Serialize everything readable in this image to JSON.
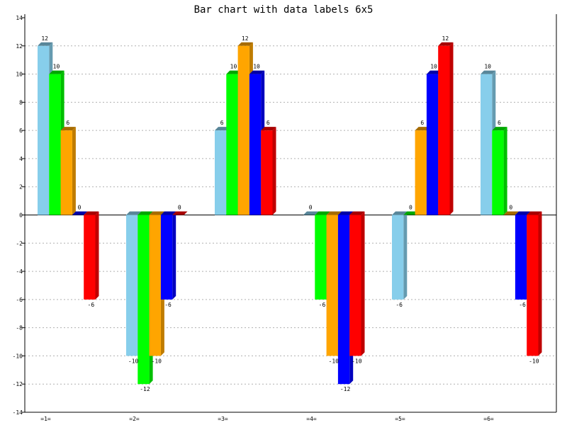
{
  "chart_data": {
    "type": "bar",
    "title": "Bar chart with data labels 6x5",
    "categories": [
      "=1=",
      "=2=",
      "=3=",
      "=4=",
      "=5=",
      "=6="
    ],
    "series": [
      {
        "values": [
          12,
          -10,
          6,
          0,
          -6,
          10
        ],
        "color": "#87ceeb"
      },
      {
        "values": [
          10,
          -12,
          10,
          -6,
          0,
          6
        ],
        "color": "#00ff00"
      },
      {
        "values": [
          6,
          -10,
          12,
          -10,
          6,
          0
        ],
        "color": "#ffa500"
      },
      {
        "values": [
          0,
          -6,
          10,
          -12,
          10,
          -6
        ],
        "color": "#0000ff"
      },
      {
        "values": [
          -6,
          0,
          6,
          -10,
          12,
          -10
        ],
        "color": "#ff0000"
      }
    ],
    "ylim": [
      -14,
      14
    ],
    "yticks": [
      -14,
      -12,
      -10,
      -8,
      -6,
      -4,
      -2,
      0,
      2,
      4,
      6,
      8,
      10,
      12,
      14
    ],
    "grid": true,
    "data_labels": true
  }
}
